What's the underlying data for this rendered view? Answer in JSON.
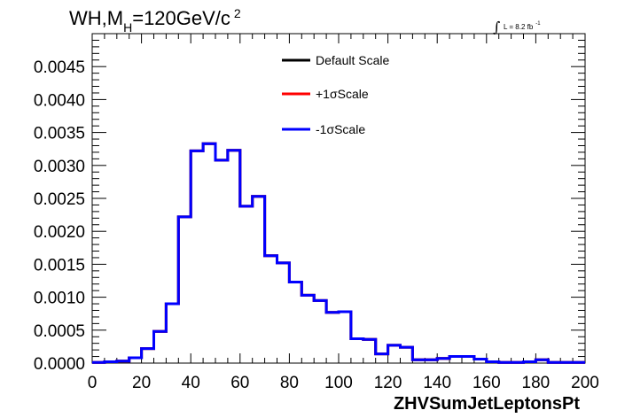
{
  "title": {
    "prefix": "WH,M",
    "subscript": "H",
    "value": "=120GeV/c",
    "superscript": "2"
  },
  "lumi": {
    "integral": "∫",
    "text": "L = 8.2 fb",
    "superscript": "-1"
  },
  "chart_data": {
    "type": "line",
    "xlabel": "ZHVSumJetLeptonsPt",
    "ylabel": "",
    "xlim": [
      0,
      200
    ],
    "ylim": [
      0,
      0.005
    ],
    "x_ticks": [
      "0",
      "20",
      "40",
      "60",
      "80",
      "100",
      "120",
      "140",
      "160",
      "180",
      "200"
    ],
    "y_ticks": [
      "0.0000",
      "0.0005",
      "0.0010",
      "0.0015",
      "0.0020",
      "0.0025",
      "0.0030",
      "0.0035",
      "0.0040",
      "0.0045"
    ],
    "grid": false,
    "legend_placement": "top-center",
    "bin_edges": [
      0,
      5,
      10,
      15,
      20,
      25,
      30,
      35,
      40,
      45,
      50,
      55,
      60,
      65,
      70,
      75,
      80,
      85,
      90,
      95,
      100,
      105,
      110,
      115,
      120,
      125,
      130,
      135,
      140,
      145,
      150,
      155,
      160,
      165,
      170,
      175,
      180,
      185,
      190,
      195,
      200
    ],
    "series": [
      {
        "name": "Default Scale",
        "color": "#000000",
        "values": [
          1e-05,
          2e-05,
          3e-05,
          8e-05,
          0.00022,
          0.00048,
          0.0009,
          0.00222,
          0.00322,
          0.00333,
          0.00308,
          0.00323,
          0.00238,
          0.00253,
          0.00163,
          0.00152,
          0.00123,
          0.00103,
          0.00095,
          0.00077,
          0.00078,
          0.00037,
          0.00036,
          0.00014,
          0.00027,
          0.00024,
          5e-05,
          5e-05,
          7e-05,
          0.0001,
          0.0001,
          6e-05,
          2e-05,
          1e-05,
          1e-05,
          2e-05,
          5e-05,
          1e-05,
          1e-05,
          1e-05
        ]
      },
      {
        "name": "+1σScale",
        "color": "#ff0000",
        "values": [
          1e-05,
          2e-05,
          3e-05,
          8e-05,
          0.00022,
          0.00048,
          0.0009,
          0.00222,
          0.00322,
          0.00333,
          0.00308,
          0.00323,
          0.00238,
          0.00253,
          0.00163,
          0.00152,
          0.00123,
          0.00103,
          0.00095,
          0.00077,
          0.00078,
          0.00037,
          0.00036,
          0.00014,
          0.00027,
          0.00024,
          5e-05,
          5e-05,
          7e-05,
          0.0001,
          0.0001,
          6e-05,
          2e-05,
          1e-05,
          1e-05,
          2e-05,
          5e-05,
          1e-05,
          1e-05,
          1e-05
        ]
      },
      {
        "name": "-1σScale",
        "color": "#0000ff",
        "values": [
          1e-05,
          2e-05,
          3e-05,
          8e-05,
          0.00022,
          0.00048,
          0.0009,
          0.00222,
          0.00322,
          0.00333,
          0.00308,
          0.00323,
          0.00238,
          0.00253,
          0.00163,
          0.00152,
          0.00123,
          0.00103,
          0.00095,
          0.00077,
          0.00078,
          0.00037,
          0.00036,
          0.00014,
          0.00027,
          0.00024,
          5e-05,
          5e-05,
          7e-05,
          0.0001,
          0.0001,
          6e-05,
          2e-05,
          1e-05,
          1e-05,
          2e-05,
          5e-05,
          1e-05,
          1e-05,
          1e-05
        ]
      }
    ]
  }
}
